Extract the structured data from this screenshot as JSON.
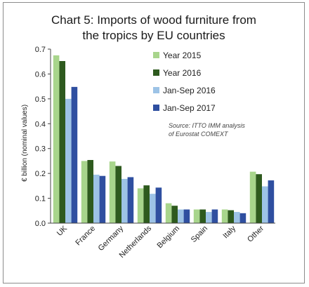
{
  "chart_data": {
    "type": "bar",
    "title_line1": "Chart 5: Imports of wood furniture from",
    "title_line2": "the tropics by EU countries",
    "ylabel": "€ billion (nominal values)",
    "ylim": [
      0,
      0.7
    ],
    "yticks": [
      "0.0",
      "0.1",
      "0.2",
      "0.3",
      "0.4",
      "0.5",
      "0.6",
      "0.7"
    ],
    "categories": [
      "UK",
      "France",
      "Germany",
      "Netherlands",
      "Belgium",
      "Spain",
      "Italy",
      "Other"
    ],
    "series": [
      {
        "name": "Year 2015",
        "color": "#a8d58c",
        "values": [
          0.675,
          0.25,
          0.248,
          0.14,
          0.08,
          0.055,
          0.055,
          0.207
        ]
      },
      {
        "name": "Year 2016",
        "color": "#2e5a1e",
        "values": [
          0.652,
          0.254,
          0.23,
          0.152,
          0.07,
          0.055,
          0.052,
          0.197
        ]
      },
      {
        "name": "Jan-Sep 2016",
        "color": "#9dc3e6",
        "values": [
          0.5,
          0.195,
          0.178,
          0.118,
          0.055,
          0.045,
          0.045,
          0.148
        ]
      },
      {
        "name": "Jan-Sep 2017",
        "color": "#2f4fa0",
        "values": [
          0.548,
          0.19,
          0.185,
          0.143,
          0.055,
          0.055,
          0.04,
          0.172
        ]
      }
    ],
    "source_line1": "Source: ITTO IMM analysis",
    "source_line2": "of Eurostat COMEXT",
    "grid": false,
    "legend_position": "top-right"
  }
}
